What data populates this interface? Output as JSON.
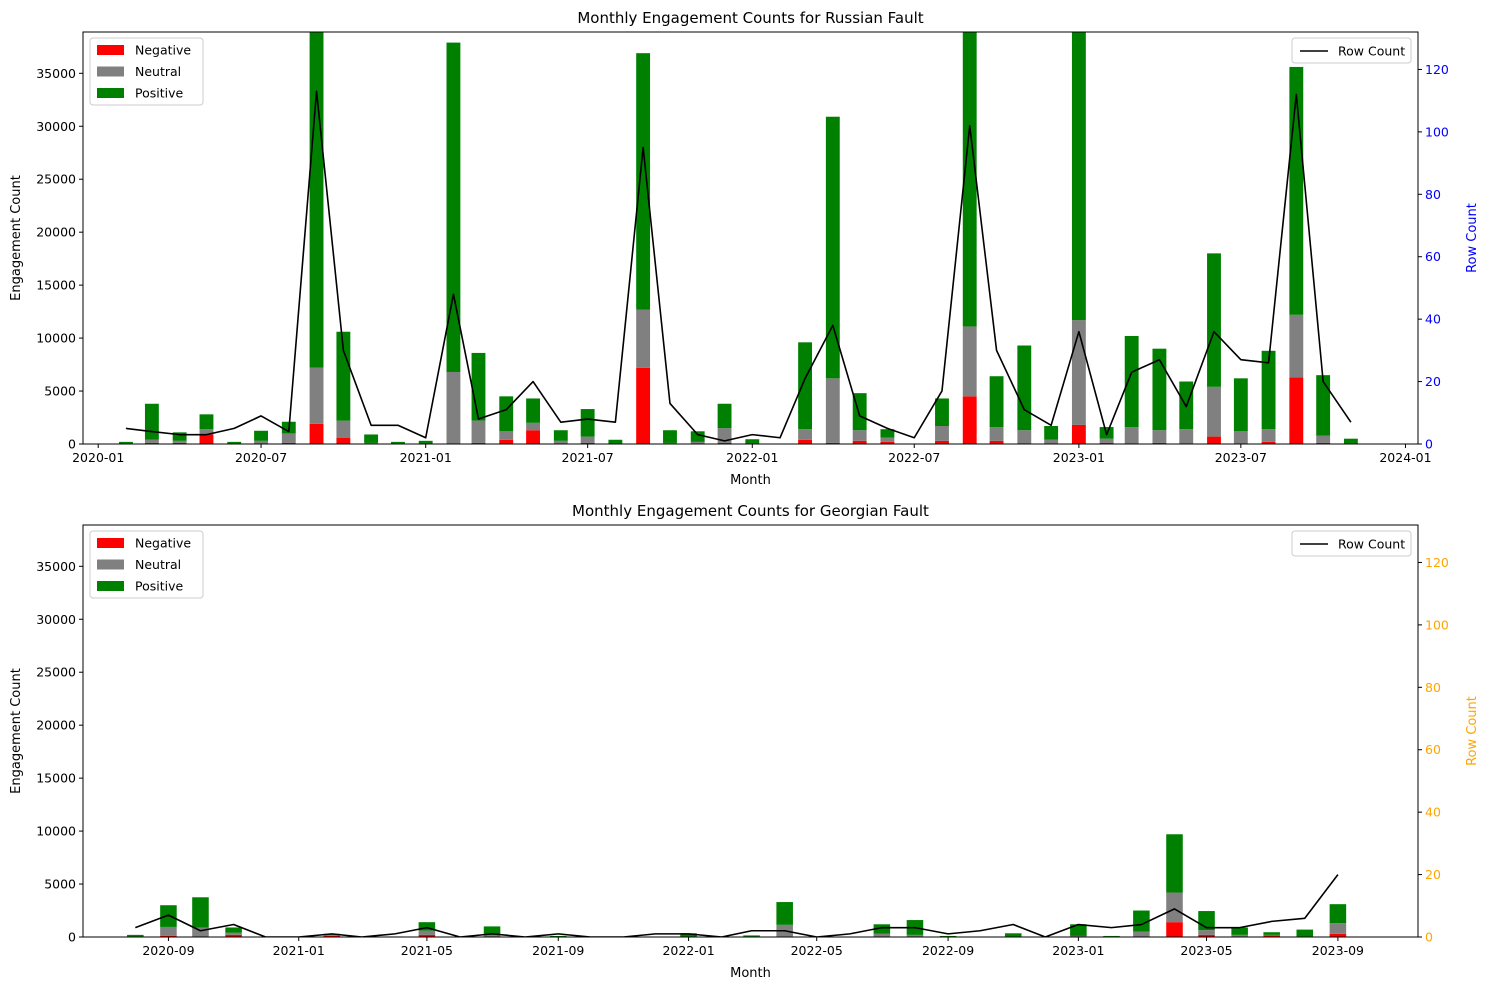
{
  "chart_data": [
    {
      "type": "bar",
      "stacked": true,
      "title": "Monthly Engagement Counts for Russian Fault",
      "xlabel": "Month",
      "ylabel": "Engagement Count",
      "y2label": "Row Count",
      "y2label_color": "#0000ff",
      "y2tick_color": "#0000ff",
      "ylim": [
        0,
        38900
      ],
      "y2lim": [
        0,
        132
      ],
      "yticks": [
        0,
        5000,
        10000,
        15000,
        20000,
        25000,
        30000,
        35000
      ],
      "y2ticks": [
        0,
        20,
        40,
        60,
        80,
        100,
        120
      ],
      "xlim": [
        "2019-12-15",
        "2024-01-15"
      ],
      "xticks": [
        "2020-01",
        "2020-07",
        "2021-01",
        "2021-07",
        "2022-01",
        "2022-07",
        "2023-01",
        "2023-07",
        "2024-01"
      ],
      "legend_left": [
        "Negative",
        "Neutral",
        "Positive"
      ],
      "legend_right": "Row Count",
      "legend_left_position": "upper left",
      "legend_right_position": "upper right",
      "colors": {
        "negative": "#ff0000",
        "neutral": "#808080",
        "positive": "#008000",
        "line": "#000000"
      },
      "months": [
        "2020-02",
        "2020-03",
        "2020-04",
        "2020-05",
        "2020-06",
        "2020-07",
        "2020-08",
        "2020-09",
        "2020-10",
        "2020-11",
        "2020-12",
        "2021-01",
        "2021-02",
        "2021-03",
        "2021-04",
        "2021-05",
        "2021-06",
        "2021-07",
        "2021-08",
        "2021-09",
        "2021-10",
        "2021-11",
        "2021-12",
        "2022-01",
        "2022-02",
        "2022-03",
        "2022-04",
        "2022-05",
        "2022-06",
        "2022-07",
        "2022-08",
        "2022-09",
        "2022-10",
        "2022-11",
        "2022-12",
        "2023-01",
        "2023-02",
        "2023-03",
        "2023-04",
        "2023-05",
        "2023-06",
        "2023-07",
        "2023-08",
        "2023-09",
        "2023-10",
        "2023-11"
      ],
      "series": [
        {
          "name": "Negative",
          "values": [
            0,
            100,
            100,
            900,
            0,
            0,
            100,
            1900,
            600,
            0,
            0,
            0,
            0,
            100,
            400,
            1300,
            0,
            100,
            0,
            7200,
            0,
            0,
            100,
            0,
            0,
            400,
            100,
            300,
            200,
            0,
            300,
            4500,
            300,
            0,
            0,
            1800,
            100,
            0,
            100,
            0,
            700,
            0,
            200,
            6300,
            100,
            0
          ]
        },
        {
          "name": "Neutral",
          "values": [
            50,
            300,
            200,
            500,
            50,
            300,
            900,
            5300,
            1600,
            100,
            50,
            50,
            6800,
            2100,
            800,
            700,
            300,
            600,
            50,
            5500,
            100,
            200,
            1400,
            50,
            0,
            1000,
            6100,
            1000,
            400,
            0,
            1400,
            6600,
            1300,
            1300,
            400,
            9900,
            400,
            1600,
            1200,
            1400,
            4700,
            1200,
            1200,
            5900,
            700,
            50
          ]
        },
        {
          "name": "Positive",
          "values": [
            150,
            3400,
            800,
            1400,
            150,
            950,
            1100,
            31700,
            8400,
            800,
            150,
            250,
            31100,
            6400,
            3300,
            2300,
            1000,
            2600,
            350,
            24200,
            1200,
            1000,
            2300,
            400,
            0,
            8200,
            24700,
            3500,
            800,
            0,
            2600,
            28000,
            4800,
            8000,
            1300,
            28000,
            1100,
            8600,
            7700,
            4500,
            12600,
            5000,
            7400,
            23400,
            5700,
            450
          ]
        },
        {
          "name": "Row Count",
          "values": [
            5,
            4,
            3,
            3,
            5,
            9,
            4,
            113,
            30,
            6,
            6,
            2,
            48,
            8,
            11,
            20,
            7,
            8,
            7,
            95,
            13,
            3,
            1,
            3,
            2,
            21,
            38,
            9,
            5,
            2,
            17,
            102,
            30,
            11,
            6,
            36,
            3,
            23,
            27,
            12,
            36,
            27,
            26,
            112,
            20,
            7
          ]
        }
      ]
    },
    {
      "type": "bar",
      "stacked": true,
      "title": "Monthly Engagement Counts for Georgian Fault",
      "xlabel": "Month",
      "ylabel": "Engagement Count",
      "y2label": "Row Count",
      "y2label_color": "#ffa500",
      "y2tick_color": "#ffa500",
      "ylim": [
        0,
        38900
      ],
      "y2lim": [
        0,
        132
      ],
      "yticks": [
        0,
        5000,
        10000,
        15000,
        20000,
        25000,
        30000,
        35000
      ],
      "y2ticks": [
        0,
        20,
        40,
        60,
        80,
        100,
        120
      ],
      "xlim": [
        "2020-06-13",
        "2023-11-15"
      ],
      "xticks": [
        "2020-09",
        "2021-01",
        "2021-05",
        "2021-09",
        "2022-01",
        "2022-05",
        "2022-09",
        "2023-01",
        "2023-05",
        "2023-09"
      ],
      "legend_left": [
        "Negative",
        "Neutral",
        "Positive"
      ],
      "legend_right": "Row Count",
      "legend_left_position": "upper left",
      "legend_right_position": "upper right",
      "colors": {
        "negative": "#ff0000",
        "neutral": "#808080",
        "positive": "#008000",
        "line": "#000000"
      },
      "months": [
        "2020-08",
        "2020-09",
        "2020-10",
        "2020-11",
        "2020-12",
        "2021-01",
        "2021-02",
        "2021-03",
        "2021-04",
        "2021-05",
        "2021-06",
        "2021-07",
        "2021-08",
        "2021-09",
        "2021-10",
        "2021-11",
        "2021-12",
        "2022-01",
        "2022-02",
        "2022-03",
        "2022-04",
        "2022-05",
        "2022-06",
        "2022-07",
        "2022-08",
        "2022-09",
        "2022-10",
        "2022-11",
        "2022-12",
        "2023-01",
        "2023-02",
        "2023-03",
        "2023-04",
        "2023-05",
        "2023-06",
        "2023-07",
        "2023-08",
        "2023-09"
      ],
      "series": [
        {
          "name": "Negative",
          "values": [
            0,
            100,
            0,
            200,
            0,
            0,
            100,
            0,
            0,
            200,
            0,
            0,
            0,
            0,
            0,
            0,
            0,
            0,
            0,
            0,
            50,
            0,
            0,
            0,
            0,
            0,
            0,
            0,
            0,
            0,
            0,
            0,
            1400,
            200,
            0,
            150,
            0,
            300
          ]
        },
        {
          "name": "Neutral",
          "values": [
            50,
            850,
            900,
            200,
            0,
            0,
            100,
            0,
            0,
            400,
            0,
            200,
            0,
            0,
            0,
            0,
            0,
            50,
            0,
            50,
            1100,
            0,
            0,
            300,
            200,
            0,
            0,
            50,
            0,
            100,
            50,
            500,
            2800,
            450,
            200,
            50,
            50,
            1000
          ]
        },
        {
          "name": "Positive",
          "values": [
            150,
            2050,
            2850,
            500,
            0,
            0,
            100,
            0,
            50,
            800,
            0,
            800,
            0,
            100,
            0,
            0,
            0,
            300,
            0,
            100,
            2150,
            0,
            0,
            900,
            1400,
            100,
            0,
            300,
            0,
            1100,
            50,
            2000,
            5500,
            1800,
            700,
            250,
            650,
            1800
          ]
        },
        {
          "name": "Row Count",
          "values": [
            3,
            7,
            2,
            4,
            0,
            0,
            1,
            0,
            1,
            3,
            0,
            1,
            0,
            1,
            0,
            0,
            1,
            1,
            0,
            2,
            2,
            0,
            1,
            3,
            3,
            1,
            2,
            4,
            0,
            4,
            3,
            4,
            9,
            3,
            3,
            5,
            6,
            20
          ]
        }
      ]
    }
  ]
}
